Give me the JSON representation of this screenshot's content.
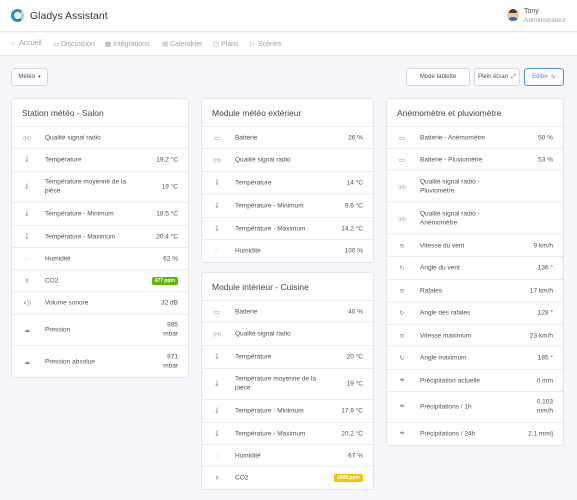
{
  "header": {
    "app_title": "Gladys Assistant",
    "user_name": "Tony",
    "user_role": "Administrateur"
  },
  "nav": {
    "items": [
      {
        "label": "Accueil",
        "icon": "home-icon"
      },
      {
        "label": "Discussion",
        "icon": "chat-icon"
      },
      {
        "label": "Intégrations",
        "icon": "grid-icon"
      },
      {
        "label": "Calendrier",
        "icon": "calendar-icon"
      },
      {
        "label": "Plans",
        "icon": "map-icon"
      },
      {
        "label": "Scènes",
        "icon": "play-icon"
      }
    ]
  },
  "toolbar": {
    "dashboard_select": "Météo",
    "tablet_mode_label": "Mode tablette",
    "fullscreen_label": "Plein écran",
    "edit_label": "Editer"
  },
  "colors": {
    "accent": "#4a90d9",
    "badge_green": "#5eba00",
    "badge_yellow": "#f1c40f"
  },
  "cards": {
    "salon": {
      "title": "Station météo - Salon",
      "rows": [
        {
          "label": "Qualité signal radio",
          "value": "",
          "icon": "radio-signal-icon"
        },
        {
          "label": "Température",
          "value": "19.2 °C",
          "icon": "thermometer-icon"
        },
        {
          "label": "Température moyenne de la pièce",
          "value": "19 °C",
          "icon": "thermometer-icon"
        },
        {
          "label": "Température - Minimum",
          "value": "18.5 °C",
          "icon": "thermometer-icon"
        },
        {
          "label": "Température - Maximum",
          "value": "20.4 °C",
          "icon": "thermometer-icon"
        },
        {
          "label": "Humidité",
          "value": "62 %",
          "icon": "droplet-icon"
        },
        {
          "label": "CO2",
          "value": "",
          "badge": "477 ppm",
          "icon": "bar-chart-icon"
        },
        {
          "label": "Volume sonore",
          "value": "32 dB",
          "icon": "volume-icon"
        },
        {
          "label": "Pression",
          "value": "985\nmbar",
          "icon": "cloud-icon"
        },
        {
          "label": "Pression absolue",
          "value": "971\nmbar",
          "icon": "cloud-icon"
        }
      ]
    },
    "exterior": {
      "title": "Module météo extérieur",
      "rows": [
        {
          "label": "Batterie",
          "value": "26 %",
          "icon": "battery-icon"
        },
        {
          "label": "Qualité signal radio",
          "value": "",
          "icon": "radio-signal-icon"
        },
        {
          "label": "Température",
          "value": "14 °C",
          "icon": "thermometer-icon"
        },
        {
          "label": "Température - Minimum",
          "value": "9.6 °C",
          "icon": "thermometer-icon"
        },
        {
          "label": "Température - Maximum",
          "value": "14.2 °C",
          "icon": "thermometer-icon"
        },
        {
          "label": "Humidité",
          "value": "100 %",
          "icon": "droplet-icon"
        }
      ]
    },
    "kitchen": {
      "title": "Module intérieur - Cuisine",
      "rows": [
        {
          "label": "Batterie",
          "value": "40 %",
          "icon": "battery-icon"
        },
        {
          "label": "Qualité signal radio",
          "value": "",
          "icon": "radio-signal-icon"
        },
        {
          "label": "Température",
          "value": "20 °C",
          "icon": "thermometer-icon"
        },
        {
          "label": "Température moyenne de la pièce",
          "value": "19 °C",
          "icon": "thermometer-icon"
        },
        {
          "label": "Température - Minimum",
          "value": "17.9 °C",
          "icon": "thermometer-icon"
        },
        {
          "label": "Température - Maximum",
          "value": "20.2 °C",
          "icon": "thermometer-icon"
        },
        {
          "label": "Humidité",
          "value": "67 %",
          "icon": "droplet-icon"
        },
        {
          "label": "CO2",
          "value": "",
          "badge": "1008 ppm",
          "icon": "bar-chart-icon"
        }
      ]
    },
    "anemometer": {
      "title": "Anémomètre et pluviomètre",
      "rows": [
        {
          "label": "Batterie - Anémomètre",
          "value": "50 %",
          "icon": "battery-icon"
        },
        {
          "label": "Batterie - Pluviomètre",
          "value": "53 %",
          "icon": "battery-icon"
        },
        {
          "label": "Qualité signal radio - Pluviomètre",
          "value": "",
          "icon": "radio-signal-icon"
        },
        {
          "label": "Qualité signal radio - Anémomètre",
          "value": "",
          "icon": "radio-signal-icon"
        },
        {
          "label": "Vitesse du vent",
          "value": "9 km/h",
          "icon": "wind-icon"
        },
        {
          "label": "Angle du vent",
          "value": "136 °",
          "icon": "rotate-icon"
        },
        {
          "label": "Rafales",
          "value": "17 km/h",
          "icon": "wind-icon"
        },
        {
          "label": "Angle des rafales",
          "value": "128 °",
          "icon": "rotate-icon"
        },
        {
          "label": "Vitesse maximum",
          "value": "23 km/h",
          "icon": "wind-icon"
        },
        {
          "label": "Angle maximum",
          "value": "185 °",
          "icon": "rotate-icon"
        },
        {
          "label": "Précipitation actuelle",
          "value": "0 mm",
          "icon": "umbrella-icon"
        },
        {
          "label": "Précipitations / 1h",
          "value": "0.103\nmm/h",
          "icon": "umbrella-icon"
        },
        {
          "label": "Précipitations / 24h",
          "value": "2.1 mm/j",
          "icon": "umbrella-icon"
        }
      ]
    }
  }
}
